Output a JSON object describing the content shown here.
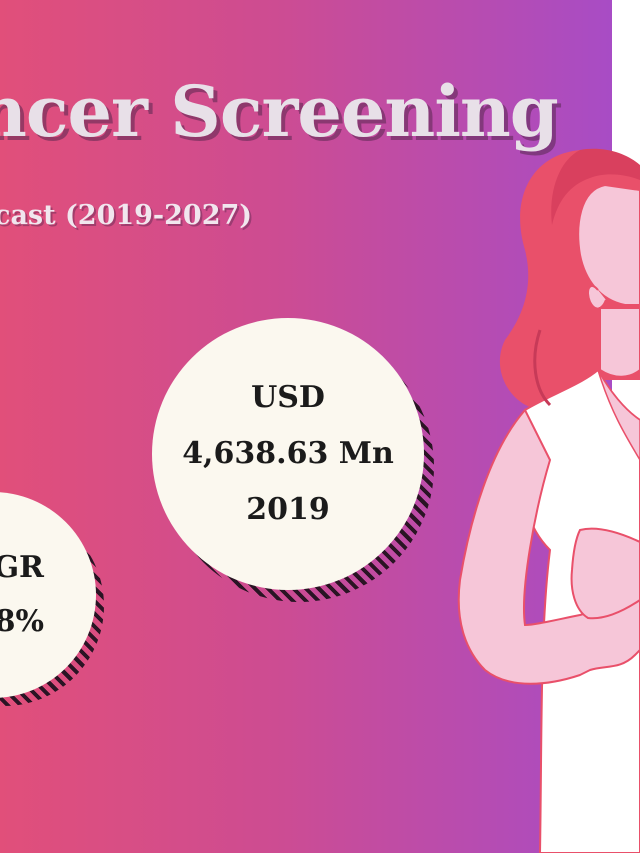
{
  "header": {
    "title": "ncer Screening",
    "subtitle": "cast (2019-2027)"
  },
  "stats": {
    "market_value": {
      "currency": "USD",
      "amount": "4,638.63 Mn",
      "year": "2019"
    },
    "cagr": {
      "label": "GR",
      "value": "8%"
    }
  },
  "colors": {
    "gradient_start": "#e14f7a",
    "gradient_end": "#a84cc5",
    "circle_fill": "#fbf8ef",
    "hair": "#e9506a",
    "skin": "#f6c6d8",
    "shirt": "#ffffff"
  },
  "illustration": "woman-holding-chest-icon"
}
